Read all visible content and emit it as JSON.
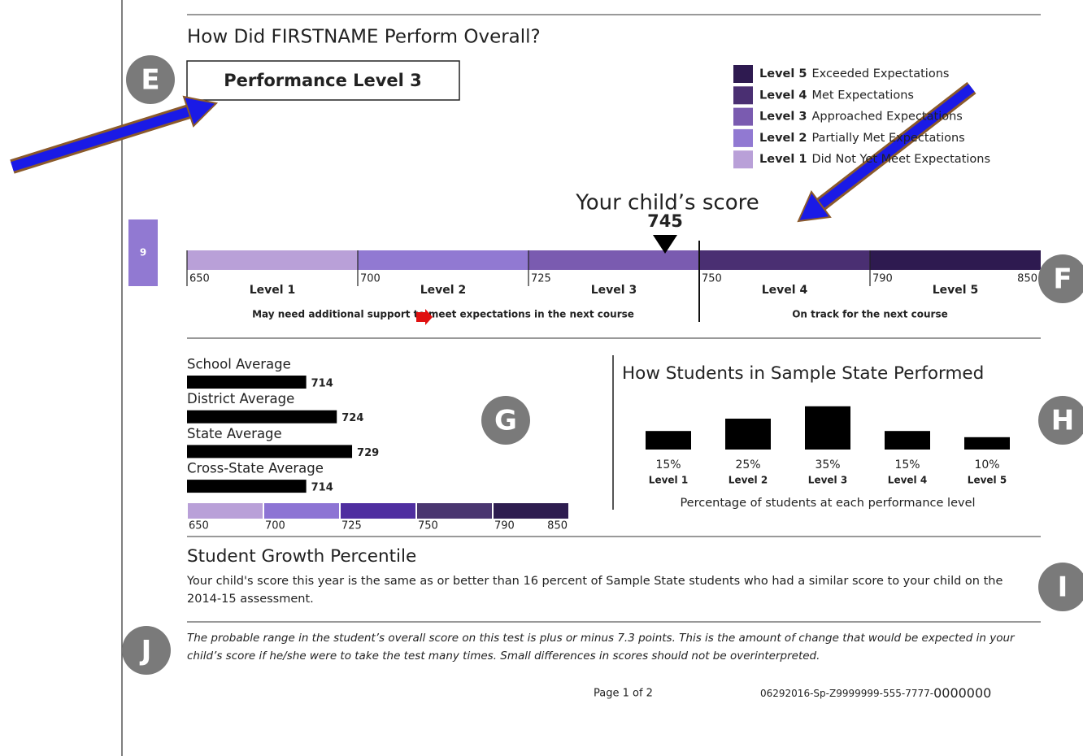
{
  "title": "How Did FIRSTNAME Perform Overall?",
  "performance_level": "Performance Level 3",
  "badges": [
    "E",
    "F",
    "G",
    "H",
    "I",
    "J"
  ],
  "side_tab": "9",
  "legend": [
    {
      "level": "Level 5",
      "text": "Exceeded Expectations",
      "color": "#2e1a50"
    },
    {
      "level": "Level 4",
      "text": "Met Expectations",
      "color": "#4a2f72"
    },
    {
      "level": "Level 3",
      "text": "Approached Expectations",
      "color": "#7a5bb0"
    },
    {
      "level": "Level 2",
      "text": "Partially Met Expectations",
      "color": "#9179d2"
    },
    {
      "level": "Level 1",
      "text": "Did Not Yet Meet Expectations",
      "color": "#b9a0d8"
    }
  ],
  "score": {
    "label": "Your child’s score",
    "value": 745
  },
  "scale": {
    "ticks": [
      650,
      700,
      725,
      750,
      790,
      850
    ],
    "levels": [
      "Level 1",
      "Level 2",
      "Level 3",
      "Level 4",
      "Level 5"
    ],
    "colors": [
      "#b9a0d8",
      "#9179d2",
      "#7a5bb0",
      "#4a2f72",
      "#2e1a50"
    ],
    "cut_score": 750,
    "support": [
      "May need additional support to meet expectations in the next course",
      "On track for the next course"
    ]
  },
  "averages": {
    "items": [
      {
        "label": "School Average",
        "value": 714
      },
      {
        "label": "District Average",
        "value": 724
      },
      {
        "label": "State Average",
        "value": 729
      },
      {
        "label": "Cross-State Average",
        "value": 714
      }
    ],
    "ticks": [
      650,
      700,
      725,
      750,
      790,
      850
    ],
    "colors": [
      "#b9a0d8",
      "#8d74d4",
      "#4f2ea0",
      "#4a3670",
      "#2e1d50"
    ],
    "bar_color": "#000000"
  },
  "state_chart": {
    "type": "bar",
    "title": "How Students in Sample State Performed",
    "categories": [
      "Level 1",
      "Level 2",
      "Level 3",
      "Level 4",
      "Level 5"
    ],
    "values": [
      15,
      25,
      35,
      15,
      10
    ],
    "value_labels": [
      "15%",
      "25%",
      "35%",
      "15%",
      "10%"
    ],
    "color": "#000000",
    "caption": "Percentage of students at each performance level"
  },
  "growth": {
    "title": "Student Growth Percentile",
    "text": "Your child's score this year is the same as or better than 16 percent of Sample State students who had a similar score to your child on the 2014-15 assessment."
  },
  "note": "The probable range in the student’s overall score on this test is plus or minus 7.3 points. This is the amount of change that would be expected in your child’s score if he/she were to take the test many times. Small differences in scores should not be overinterpreted.",
  "footer": {
    "page": "Page 1 of 2",
    "id": "06292016-Sp-Z9999999-555-7777-",
    "id_suffix": "0000000"
  }
}
